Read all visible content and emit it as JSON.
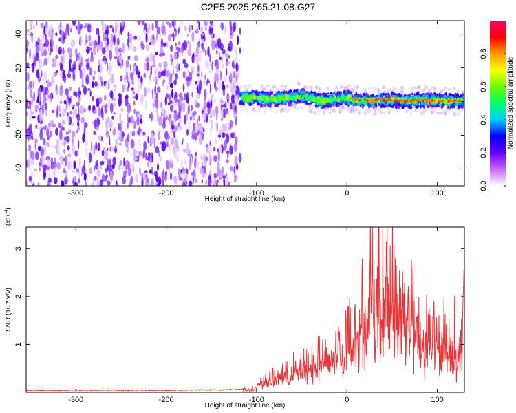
{
  "chart_data": [
    {
      "type": "heatmap",
      "title": "C2E5.2025.265.21.08.G27",
      "xlabel": "Height of straight line (km)",
      "ylabel": "Frequency (Hz)",
      "xlim": [
        -355,
        130
      ],
      "ylim": [
        -50,
        48
      ],
      "x_ticks": [
        -300,
        -200,
        -100,
        0,
        100
      ],
      "y_ticks": [
        -40,
        -20,
        0,
        20,
        40
      ],
      "colorbar": {
        "label": "Normalized spectral amplitude",
        "range": [
          0,
          1
        ],
        "ticks": [
          0.0,
          0.2,
          0.4,
          0.6,
          0.8
        ],
        "tick_labels": [
          "0.0",
          "0.2",
          "0.4",
          "0.6",
          "0.8"
        ],
        "colors": [
          "#ffffff",
          "#cc66ff",
          "#6600ff",
          "#0000ff",
          "#00ccff",
          "#00ff66",
          "#66ff00",
          "#ffff00",
          "#ff9900",
          "#ff0000",
          "#ff0066"
        ]
      },
      "noise_region": {
        "x_range": [
          -355,
          -118
        ],
        "freq_range": [
          -50,
          48
        ]
      },
      "signal_band": {
        "x_range": [
          -118,
          130
        ],
        "center_freq": 1,
        "half_width": 4
      },
      "signal_center_trace": {
        "x": [
          -118,
          -110,
          -100,
          -90,
          -80,
          -70,
          -60,
          -50,
          -40,
          -30,
          -20,
          -10,
          0,
          10,
          20,
          30,
          40,
          50,
          60,
          70,
          80,
          90,
          100,
          110,
          120,
          130
        ],
        "freq": [
          3,
          2,
          2,
          1.5,
          1.5,
          2,
          2.5,
          3.5,
          2,
          0.5,
          1,
          1.5,
          2,
          1,
          0.5,
          0.5,
          1,
          1,
          0.5,
          0.5,
          1,
          0.5,
          0.5,
          0.5,
          0.5,
          0.5
        ]
      }
    },
    {
      "type": "line",
      "xlabel": "Height of straight line (km)",
      "ylabel": "SNR (10 * v/v)",
      "y_multiplier": "(x10",
      "y_multiplier_exp": "4",
      "y_multiplier_close": ")",
      "xlim": [
        -355,
        130
      ],
      "ylim": [
        0,
        3.45
      ],
      "x_ticks": [
        -300,
        -200,
        -100,
        0,
        100
      ],
      "y_ticks": [
        1,
        2,
        3
      ],
      "line_color": "#e8373a",
      "series": [
        {
          "x": [
            -355,
            -340,
            -320,
            -300,
            -280,
            -260,
            -240,
            -220,
            -200,
            -180,
            -160,
            -140,
            -120,
            -110,
            -100,
            -95,
            -90,
            -85,
            -80,
            -75,
            -70,
            -65,
            -60,
            -55,
            -50,
            -45,
            -40,
            -35,
            -30,
            -25,
            -20,
            -15,
            -10,
            -5,
            0,
            3,
            6,
            10,
            14,
            18,
            22,
            26,
            29,
            32,
            35,
            38,
            41,
            44,
            47,
            50,
            53,
            56,
            59,
            62,
            65,
            68,
            71,
            74,
            77,
            80,
            83,
            86,
            89,
            92,
            95,
            98,
            101,
            104,
            107,
            110,
            113,
            116,
            119,
            122,
            125,
            128,
            130
          ],
          "y": [
            0.04,
            0.04,
            0.04,
            0.045,
            0.04,
            0.045,
            0.04,
            0.045,
            0.04,
            0.045,
            0.05,
            0.05,
            0.06,
            0.08,
            0.12,
            0.25,
            0.35,
            0.3,
            0.4,
            0.45,
            0.5,
            0.4,
            0.6,
            0.55,
            0.7,
            0.6,
            0.8,
            0.7,
            0.9,
            0.85,
            1.1,
            0.9,
            1.2,
            1.0,
            1.4,
            1.8,
            1.2,
            2.1,
            1.6,
            2.4,
            1.4,
            2.8,
            3.1,
            2.2,
            2.9,
            1.8,
            3.2,
            3.45,
            2.6,
            3.3,
            2.0,
            3.0,
            1.8,
            2.6,
            1.3,
            2.9,
            2.3,
            1.6,
            2.2,
            1.5,
            1.9,
            1.1,
            1.7,
            1.3,
            1.9,
            1.0,
            1.6,
            0.9,
            1.7,
            1.2,
            1.5,
            0.9,
            1.4,
            0.8,
            1.1,
            2.0,
            2.6
          ]
        }
      ]
    }
  ]
}
